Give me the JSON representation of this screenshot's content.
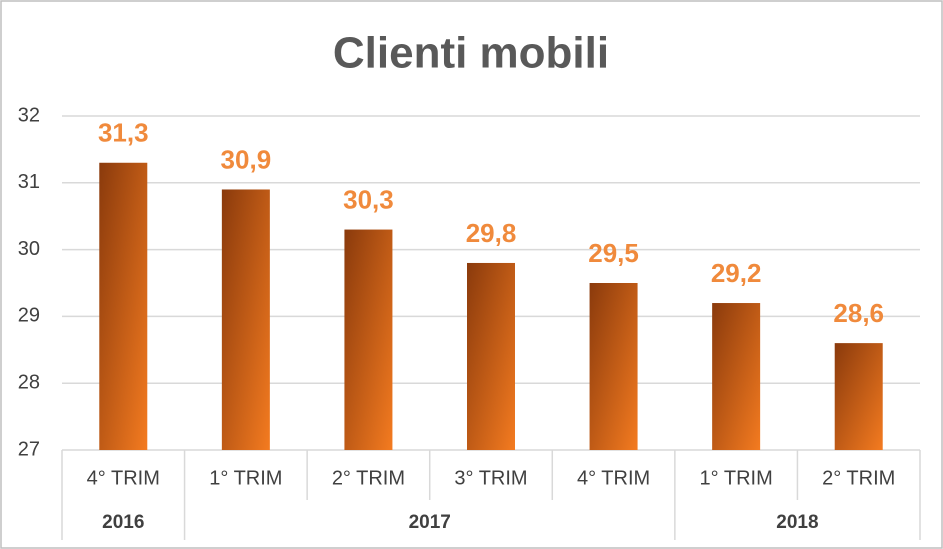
{
  "chart_data": {
    "type": "bar",
    "title": "Clienti mobili",
    "categories": [
      "4° TRIM",
      "1° TRIM",
      "2° TRIM",
      "3° TRIM",
      "4° TRIM",
      "1° TRIM",
      "2° TRIM"
    ],
    "category_groups": [
      "2016",
      "2017",
      null,
      null,
      null,
      "2018",
      null
    ],
    "values": [
      31.3,
      30.9,
      30.3,
      29.8,
      29.5,
      29.2,
      28.6
    ],
    "value_labels": [
      "31,3",
      "30,9",
      "30,3",
      "29,8",
      "29,5",
      "29,2",
      "28,6"
    ],
    "color": "#f47b20",
    "ylim": [
      27,
      32
    ],
    "yticks": [
      27,
      28,
      29,
      30,
      31,
      32
    ],
    "grid": true
  }
}
